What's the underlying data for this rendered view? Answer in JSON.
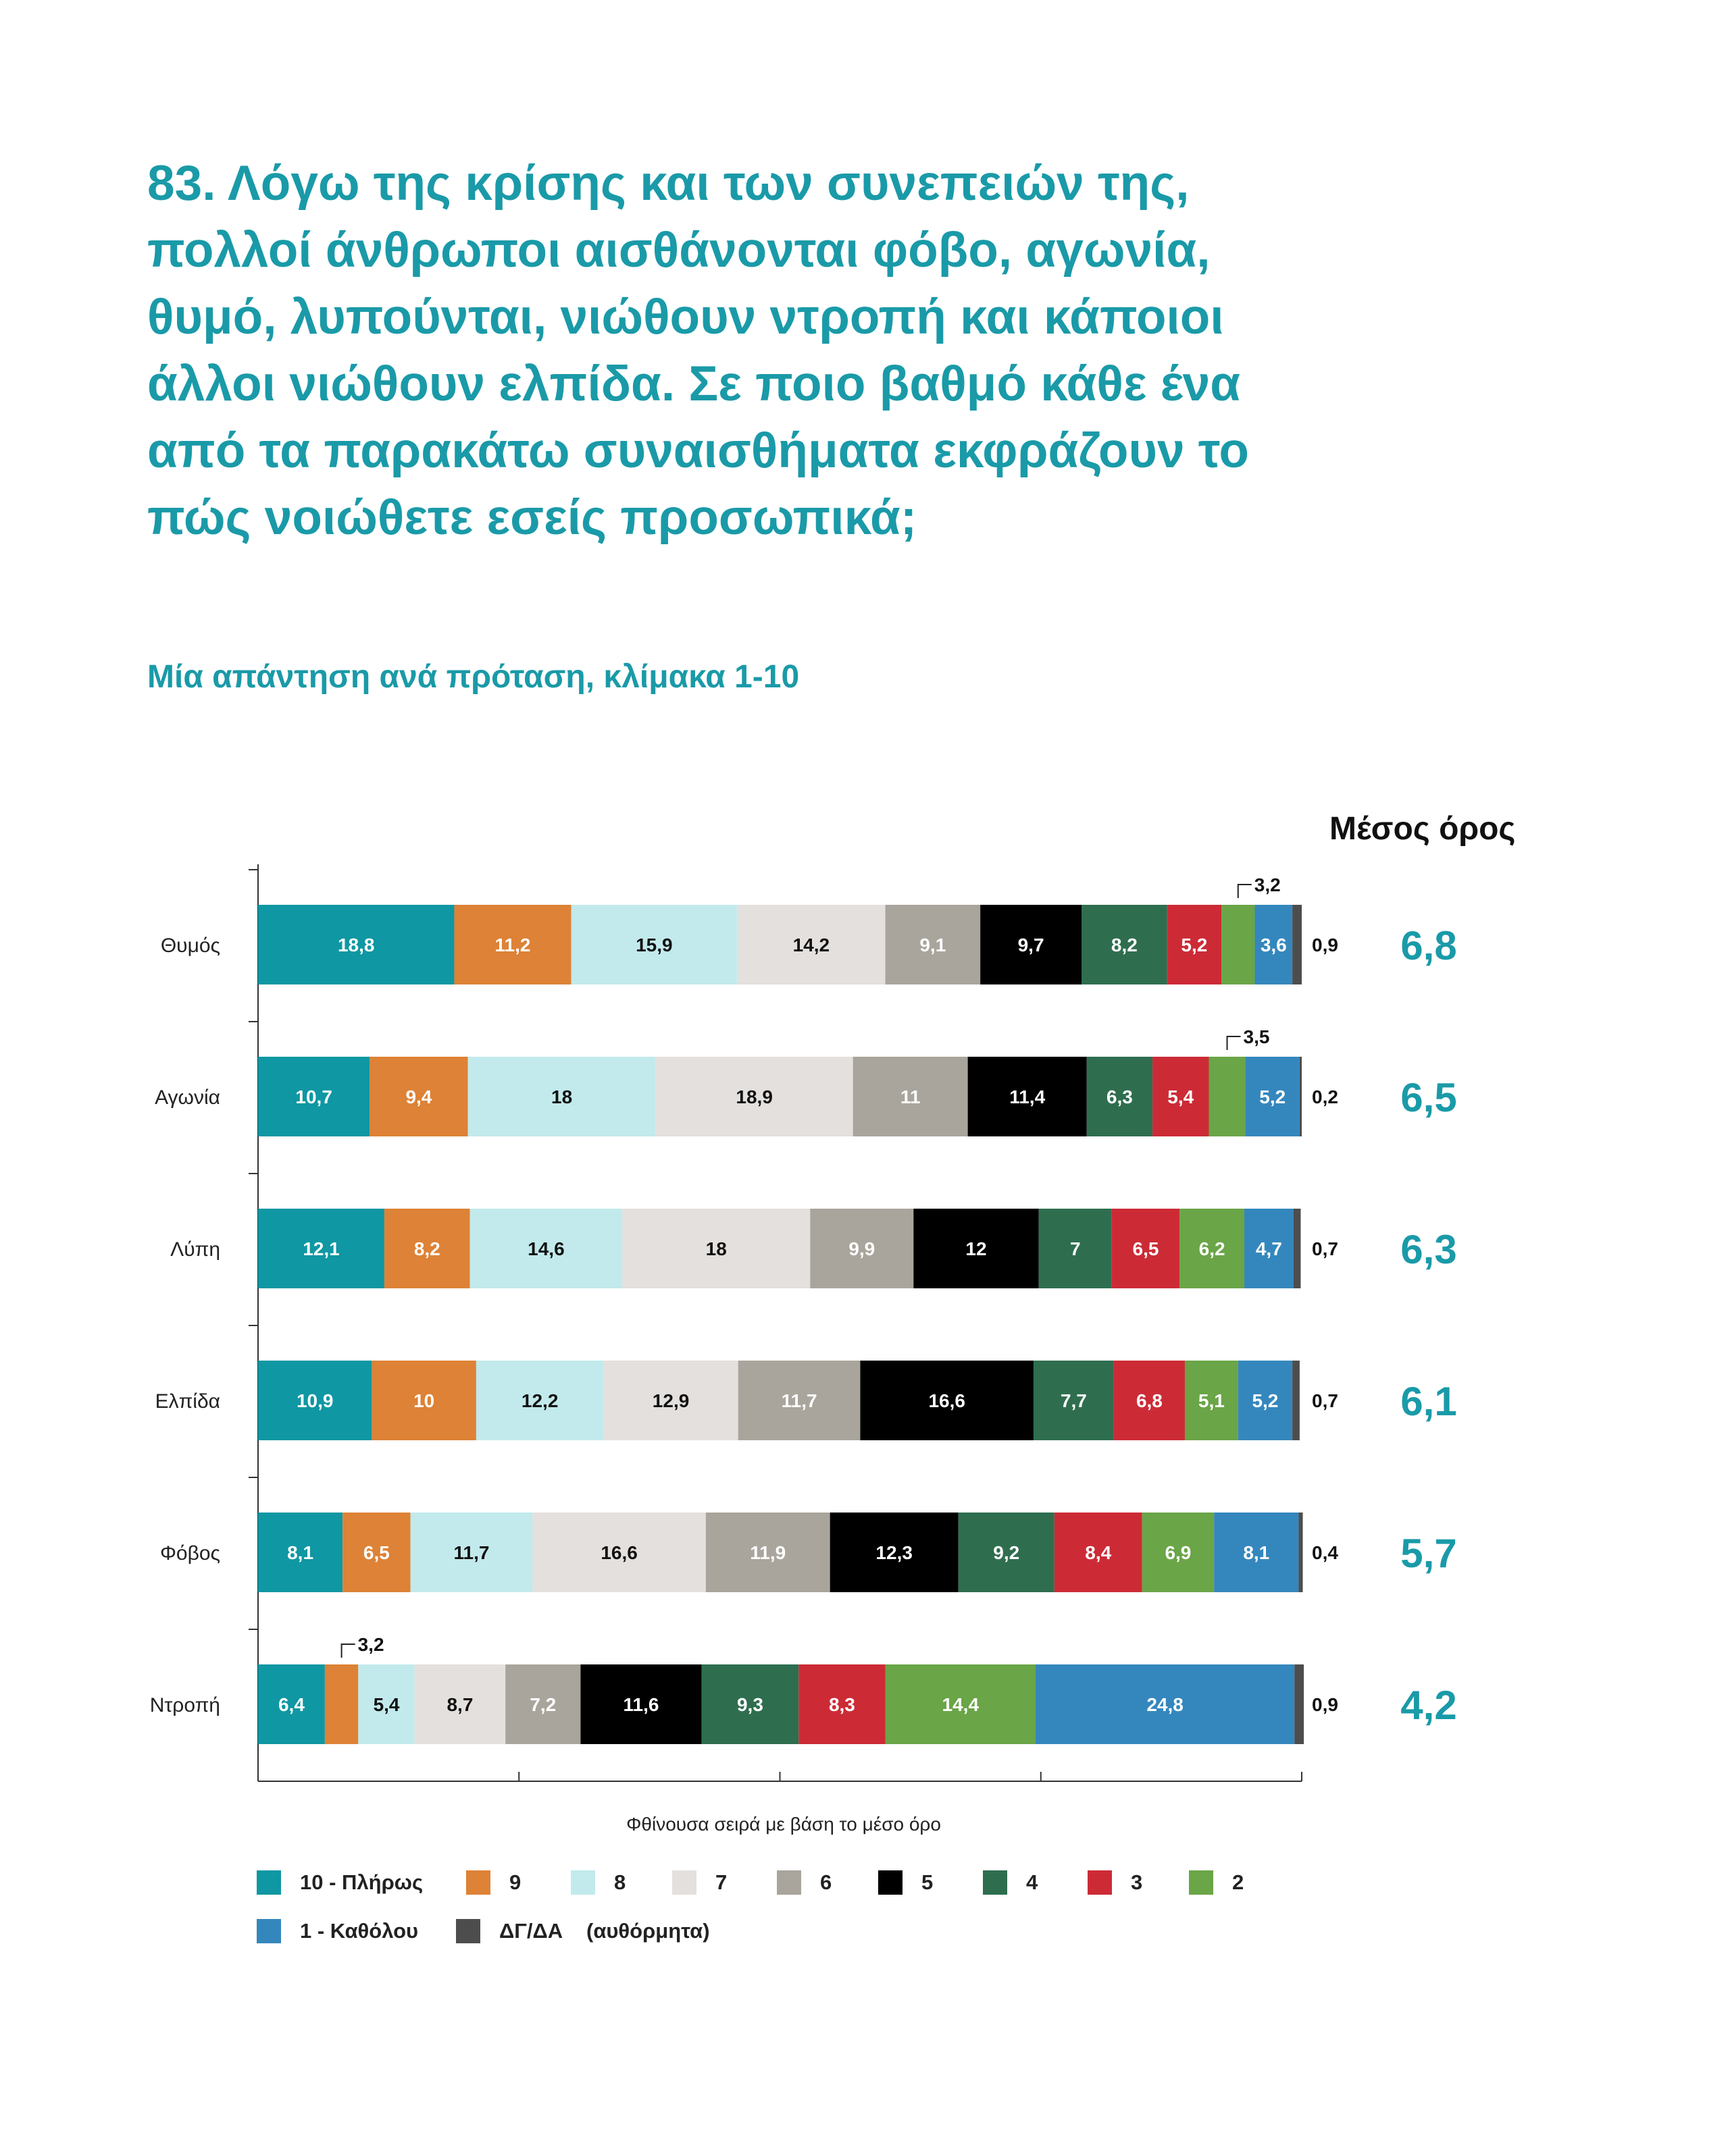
{
  "title": "83. Λόγω της κρίσης και των συνεπειών της, πολλοί άνθρωποι αισθάνονται φόβο, αγωνία, θυμό, λυπούνται, νιώθουν ντροπή και κάποιοι άλλοι νιώθουν ελπίδα. Σε ποιο βαθμό κάθε ένα από τα παρακάτω συναισθήματα εκφράζουν το πώς νοιώθετε εσείς προσωπικά;",
  "subtitle": "Μία απάντηση ανά πρόταση, κλίμακα 1-10",
  "mean_header": "Μέσος όρος",
  "x_note": "Φθίνουσα σειρά με βάση το μέσο όρο",
  "legend_note": "(αυθόρμητα)",
  "chart_data": {
    "type": "bar",
    "orientation": "horizontal",
    "stacked": true,
    "value_unit": "%",
    "xlim": [
      0,
      100
    ],
    "grid": false,
    "legend_position": "bottom",
    "categories": [
      "Θυμός",
      "Αγωνία",
      "Λύπη",
      "Ελπίδα",
      "Φόβος",
      "Ντροπή"
    ],
    "means": [
      "6,8",
      "6,5",
      "6,3",
      "6,1",
      "5,7",
      "4,2"
    ],
    "series": [
      {
        "name": "10 - Πλήρως",
        "color": "#0f97a3",
        "values": [
          18.8,
          10.7,
          12.1,
          10.9,
          8.1,
          6.4
        ]
      },
      {
        "name": "9",
        "color": "#dd8236",
        "values": [
          11.2,
          9.4,
          8.2,
          10,
          6.5,
          3.2
        ]
      },
      {
        "name": "8",
        "color": "#c2eaec",
        "values": [
          15.9,
          18,
          14.6,
          12.2,
          11.7,
          5.4
        ]
      },
      {
        "name": "7",
        "color": "#e4e0dd",
        "values": [
          14.2,
          18.9,
          18,
          12.9,
          16.6,
          8.7
        ]
      },
      {
        "name": "6",
        "color": "#a9a59c",
        "values": [
          9.1,
          11,
          9.9,
          11.7,
          11.9,
          7.2
        ]
      },
      {
        "name": "5",
        "color": "#000000",
        "values": [
          9.7,
          11.4,
          12,
          16.6,
          12.3,
          11.6
        ]
      },
      {
        "name": "4",
        "color": "#2e6e4f",
        "values": [
          8.2,
          6.3,
          7,
          7.7,
          9.2,
          9.3
        ]
      },
      {
        "name": "3",
        "color": "#cc2b36",
        "values": [
          5.2,
          5.4,
          6.5,
          6.8,
          8.4,
          8.3
        ]
      },
      {
        "name": "2",
        "color": "#6aa547",
        "values": [
          3.2,
          3.5,
          6.2,
          5.1,
          6.9,
          14.4
        ]
      },
      {
        "name": "1 - Καθόλου",
        "color": "#3487bd",
        "values": [
          3.6,
          5.2,
          4.7,
          5.2,
          8.1,
          24.8
        ]
      },
      {
        "name": "ΔΓ/ΔΑ",
        "color": "#4d4d4d",
        "values": [
          0.9,
          0.2,
          0.7,
          0.7,
          0.4,
          0.9
        ]
      }
    ],
    "labels": [
      [
        "18,8",
        "11,2",
        "15,9",
        "14,2",
        "9,1",
        "9,7",
        "8,2",
        "5,2",
        "3,2",
        "3,6",
        "0,9"
      ],
      [
        "10,7",
        "9,4",
        "18",
        "18,9",
        "11",
        "11,4",
        "6,3",
        "5,4",
        "3,5",
        "5,2",
        "0,2"
      ],
      [
        "12,1",
        "8,2",
        "14,6",
        "18",
        "9,9",
        "12",
        "7",
        "6,5",
        "6,2",
        "4,7",
        "0,7"
      ],
      [
        "10,9",
        "10",
        "12,2",
        "12,9",
        "11,7",
        "16,6",
        "7,7",
        "6,8",
        "5,1",
        "5,2",
        "0,7"
      ],
      [
        "8,1",
        "6,5",
        "11,7",
        "16,6",
        "11,9",
        "12,3",
        "9,2",
        "8,4",
        "6,9",
        "8,1",
        "0,4"
      ],
      [
        "6,4",
        "3,2",
        "5,4",
        "8,7",
        "7,2",
        "11,6",
        "9,3",
        "8,3",
        "14,4",
        "24,8",
        "0,9"
      ]
    ],
    "callouts": [
      {
        "row": 0,
        "series": 8
      },
      {
        "row": 1,
        "series": 8
      },
      {
        "row": 5,
        "series": 1
      }
    ]
  }
}
